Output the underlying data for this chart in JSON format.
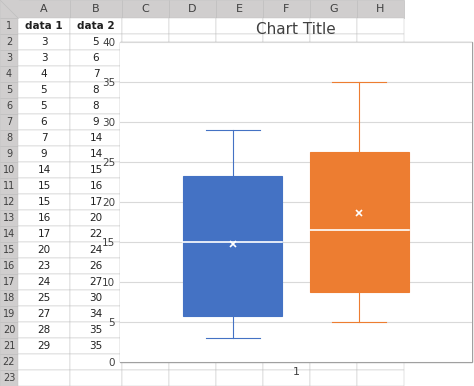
{
  "data1": [
    3,
    3,
    4,
    5,
    5,
    6,
    7,
    9,
    14,
    15,
    15,
    16,
    17,
    20,
    23,
    24,
    25,
    27,
    28,
    29
  ],
  "data2": [
    5,
    6,
    7,
    8,
    8,
    9,
    14,
    14,
    15,
    16,
    17,
    20,
    22,
    24,
    26,
    27,
    30,
    34,
    35,
    35
  ],
  "title": "Chart Title",
  "title_fontsize": 11,
  "xlabel_val": "1",
  "ylim": [
    0,
    40
  ],
  "yticks": [
    0,
    5,
    10,
    15,
    20,
    25,
    30,
    35,
    40
  ],
  "color1": "#4472C4",
  "color2": "#ED7D31",
  "bg_chart": "#FFFFFF",
  "bg_outer": "#F2F2F2",
  "bg_excel": "#FFFFFF",
  "grid_color": "#D9D9D9",
  "col_headers": [
    "",
    "A",
    "B",
    "C",
    "D",
    "E",
    "F",
    "G",
    "H"
  ],
  "row_headers": [
    "1",
    "2",
    "3",
    "4",
    "5",
    "6",
    "7",
    "8",
    "9",
    "10",
    "11",
    "12",
    "13",
    "14",
    "15",
    "16",
    "17",
    "18",
    "19",
    "20",
    "21",
    "22",
    "23"
  ],
  "cell_data_col_a": [
    "data 1",
    3,
    3,
    4,
    5,
    5,
    6,
    7,
    9,
    14,
    15,
    15,
    16,
    17,
    20,
    23,
    24,
    25,
    27,
    28,
    29,
    "",
    ""
  ],
  "cell_data_col_b": [
    "data 2",
    5,
    6,
    7,
    8,
    8,
    9,
    14,
    14,
    15,
    16,
    17,
    20,
    22,
    24,
    26,
    27,
    30,
    34,
    35,
    35,
    "",
    ""
  ],
  "header_bg": "#D0CECE",
  "row_header_bg": "#D0CECE",
  "excel_line_color": "#BFBFBF",
  "chart_border_color": "#C0C0C0"
}
